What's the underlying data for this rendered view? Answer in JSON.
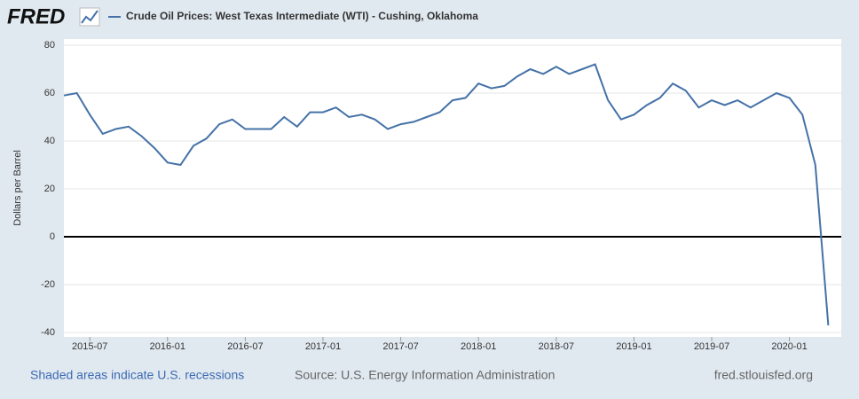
{
  "logo": "FRED",
  "chart_data": {
    "type": "line",
    "y_label": "Dollars per Barrel",
    "x": [
      "2015-05",
      "2015-06",
      "2015-07",
      "2015-08",
      "2015-09",
      "2015-10",
      "2015-11",
      "2015-12",
      "2016-01",
      "2016-02",
      "2016-03",
      "2016-04",
      "2016-05",
      "2016-06",
      "2016-07",
      "2016-08",
      "2016-09",
      "2016-10",
      "2016-11",
      "2016-12",
      "2017-01",
      "2017-02",
      "2017-03",
      "2017-04",
      "2017-05",
      "2017-06",
      "2017-07",
      "2017-08",
      "2017-09",
      "2017-10",
      "2017-11",
      "2017-12",
      "2018-01",
      "2018-02",
      "2018-03",
      "2018-04",
      "2018-05",
      "2018-06",
      "2018-07",
      "2018-08",
      "2018-09",
      "2018-10",
      "2018-11",
      "2018-12",
      "2019-01",
      "2019-02",
      "2019-03",
      "2019-04",
      "2019-05",
      "2019-06",
      "2019-07",
      "2019-08",
      "2019-09",
      "2019-10",
      "2019-11",
      "2019-12",
      "2020-01",
      "2020-02",
      "2020-03",
      "2020-04"
    ],
    "series": [
      {
        "name": "Crude Oil Prices: West Texas Intermediate (WTI) - Cushing, Oklahoma",
        "color": "#4572a7",
        "values": [
          59,
          60,
          51,
          43,
          45,
          46,
          42,
          37,
          31,
          30,
          38,
          41,
          47,
          49,
          45,
          45,
          45,
          50,
          46,
          52,
          52,
          54,
          50,
          51,
          49,
          45,
          47,
          48,
          50,
          52,
          57,
          58,
          64,
          62,
          63,
          67,
          70,
          68,
          71,
          68,
          70,
          72,
          57,
          49,
          51,
          55,
          58,
          64,
          61,
          54,
          57,
          55,
          57,
          54,
          57,
          60,
          58,
          51,
          30,
          -37
        ]
      }
    ],
    "xlim": [
      "2015-05",
      "2020-05"
    ],
    "xticks": [
      "2015-07",
      "2016-01",
      "2016-07",
      "2017-01",
      "2017-07",
      "2018-01",
      "2018-07",
      "2019-01",
      "2019-07",
      "2020-01"
    ],
    "ylim": [
      -40,
      80
    ],
    "yticks": [
      -40,
      -20,
      0,
      20,
      40,
      60,
      80
    ],
    "grid": true
  },
  "footer": {
    "recessions": "Shaded areas indicate U.S. recessions",
    "source": "Source: U.S. Energy Information Administration",
    "site": "fred.stlouisfed.org"
  }
}
